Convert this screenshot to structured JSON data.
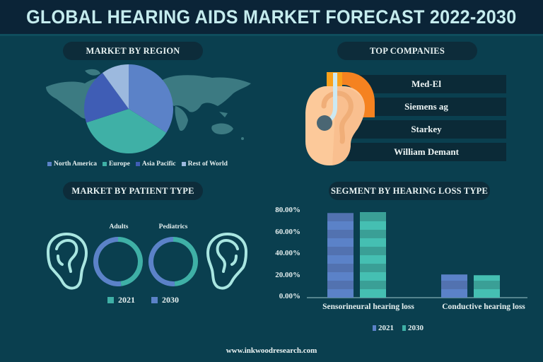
{
  "header": {
    "title": "GLOBAL HEARING AIDS MARKET FORECAST 2022-2030"
  },
  "sections": {
    "region": "MARKET BY REGION",
    "companies": "TOP COMPANIES",
    "patient": "MARKET BY PATIENT TYPE",
    "hearing_loss": "SEGMENT BY HEARING LOSS TYPE"
  },
  "companies": [
    "Med-El",
    "Siemens ag",
    "Starkey",
    "William Demant"
  ],
  "colors": {
    "north_america": "#5b82c8",
    "europe": "#3fb0a6",
    "asia_pacific": "#3f5db5",
    "rest_of_world": "#9cb9de",
    "y2021": "#5b82c8",
    "y2030": "#3fb0a6",
    "ear_outline": "#a9e6e1"
  },
  "patient": {
    "donuts": [
      {
        "label": "Adults",
        "share_2021": 48,
        "share_2030": 52
      },
      {
        "label": "Pediatrics",
        "share_2021": 49,
        "share_2030": 51
      }
    ],
    "legend": [
      "2021",
      "2030"
    ]
  },
  "footer": {
    "url": "www.inkwoodresearch.com"
  },
  "chart_data": [
    {
      "type": "pie",
      "title": "MARKET BY REGION",
      "categories": [
        "North America",
        "Europe",
        "Asia Pacific",
        "Rest of World"
      ],
      "values": [
        34,
        36,
        20,
        10
      ],
      "legend": "bottom"
    },
    {
      "type": "pie",
      "title": "MARKET BY PATIENT TYPE",
      "subcharts": [
        {
          "label": "Adults",
          "categories": [
            "2021",
            "2030"
          ],
          "values": [
            48,
            52
          ]
        },
        {
          "label": "Pediatrics",
          "categories": [
            "2021",
            "2030"
          ],
          "values": [
            49,
            51
          ]
        }
      ],
      "legend": "bottom"
    },
    {
      "type": "bar",
      "title": "SEGMENT BY HEARING LOSS TYPE",
      "categories": [
        "Sensorineural hearing loss",
        "Conductive hearing loss"
      ],
      "series": [
        {
          "name": "2021",
          "values": [
            78.5,
            21.5
          ]
        },
        {
          "name": "2030",
          "values": [
            79.2,
            20.8
          ]
        }
      ],
      "yticks": [
        "0.00%",
        "20.00%",
        "40.00%",
        "60.00%",
        "80.00%"
      ],
      "ylim": [
        0,
        80
      ],
      "xlabel": "",
      "ylabel": "",
      "grid": false,
      "legend": "bottom"
    }
  ]
}
